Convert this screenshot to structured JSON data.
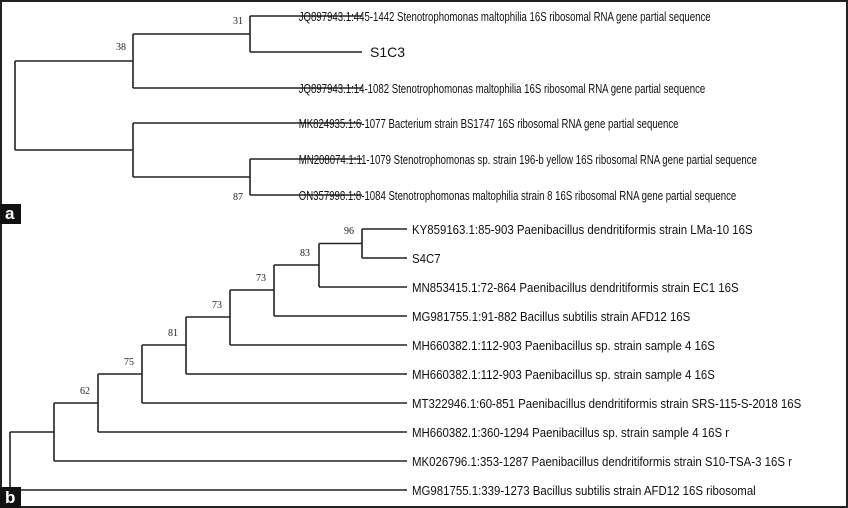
{
  "panels": [
    {
      "label": "a",
      "leaves": [
        "JQ897943.1:445-1442 Stenotrophomonas maltophilia 16S ribosomal RNA gene partial sequence",
        "S1C3",
        "JQ897943.1:14-1082 Stenotrophomonas maltophilia 16S ribosomal RNA gene partial sequence",
        "MK824935.1:6-1077 Bacterium strain BS1747 16S ribosomal RNA gene partial sequence",
        "MN208074.1:11-1079 Stenotrophomonas sp. strain 196-b yellow 16S ribosomal RNA gene partial sequence",
        "ON357998.1:8-1084 Stenotrophomonas maltophilia strain 8 16S ribosomal RNA gene partial sequence"
      ],
      "bootstrap": [
        "31",
        "38",
        "87"
      ]
    },
    {
      "label": "b",
      "leaves": [
        "KY859163.1:85-903 Paenibacillus dendritiformis strain LMa-10 16S",
        "S4C7",
        "MN853415.1:72-864 Paenibacillus dendritiformis strain EC1 16S",
        "MG981755.1:91-882 Bacillus subtilis strain AFD12 16S",
        "MH660382.1:112-903 Paenibacillus sp. strain sample 4 16S",
        "MH660382.1:112-903 Paenibacillus sp. strain sample 4 16S",
        "MT322946.1:60-851 Paenibacillus dendritiformis strain SRS-115-S-2018 16S",
        "MH660382.1:360-1294 Paenibacillus sp. strain sample 4 16S r",
        "MK026796.1:353-1287 Paenibacillus dendritiformis strain S10-TSA-3 16S r",
        "MG981755.1:339-1273 Bacillus subtilis strain AFD12 16S ribosomal"
      ],
      "bootstrap": [
        "96",
        "83",
        "73",
        "73",
        "81",
        "75",
        "62"
      ]
    }
  ]
}
